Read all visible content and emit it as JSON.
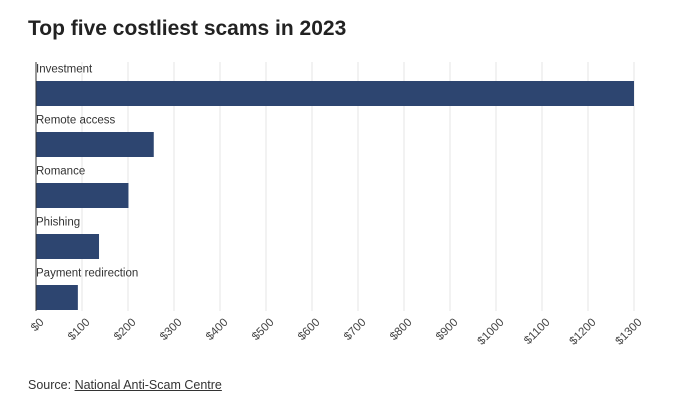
{
  "title": "Top five costliest scams in 2023",
  "source": {
    "label": "Source: ",
    "link_text": "National Anti-Scam Centre"
  },
  "colors": {
    "bar": "#2d4570",
    "grid": "#e6e6e6",
    "axis": "#333333"
  },
  "chart_data": {
    "type": "bar",
    "orientation": "horizontal",
    "categories": [
      "Investment",
      "Remote access",
      "Romance",
      "Phishing",
      "Payment redirection"
    ],
    "values": [
      1300,
      256,
      201,
      137,
      91
    ],
    "xlim": [
      0,
      1300
    ],
    "xticks": [
      0,
      100,
      200,
      300,
      400,
      500,
      600,
      700,
      800,
      900,
      1000,
      1100,
      1200,
      1300
    ],
    "tick_labels": [
      "$0",
      "$100",
      "$200",
      "$300",
      "$400",
      "$500",
      "$600",
      "$700",
      "$800",
      "$900",
      "$1000",
      "$1100",
      "$1200",
      "$1300"
    ],
    "xlabel": "",
    "ylabel": "",
    "grid": true
  }
}
